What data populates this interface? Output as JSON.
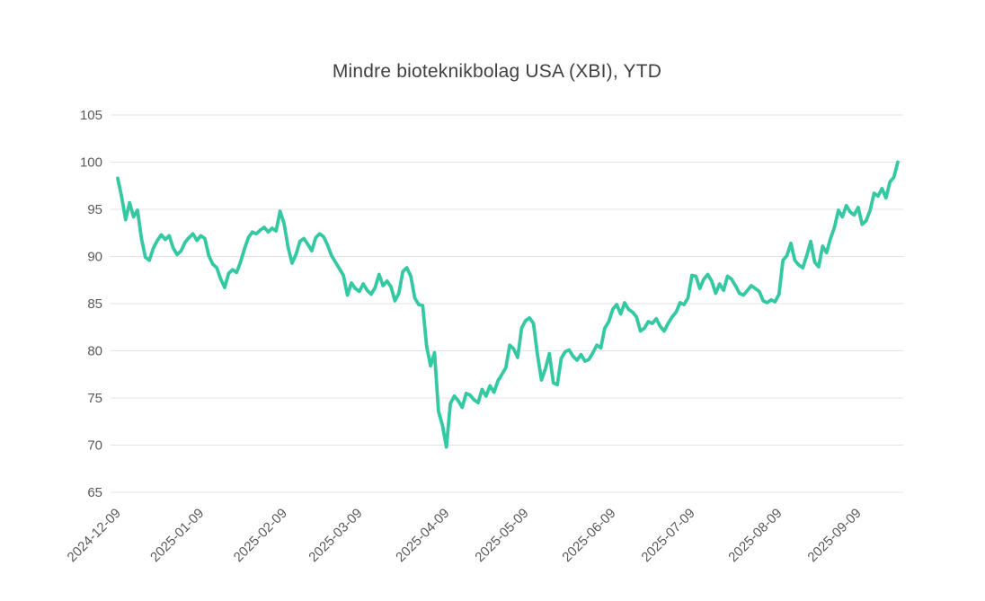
{
  "chart_data": {
    "type": "line",
    "title": "Mindre bioteknikbolag USA (XBI), YTD",
    "legend": "none",
    "grid": "horizontal",
    "ylim": [
      65,
      105
    ],
    "y_ticks": [
      65,
      70,
      75,
      80,
      85,
      90,
      95,
      100,
      105
    ],
    "x_tick_labels": [
      "2024-12-09",
      "2025-01-09",
      "2025-02-09",
      "2025-03-09",
      "2025-04-09",
      "2025-05-09",
      "2025-06-09",
      "2025-07-09",
      "2025-08-09",
      "2025-09-09"
    ],
    "x_tick_indices": [
      0,
      21,
      42,
      61,
      83,
      103,
      125,
      145,
      167,
      187
    ],
    "series": [
      {
        "name": "XBI YTD",
        "color": "#35C9A3",
        "values": [
          98.3,
          96.3,
          93.9,
          95.7,
          94.2,
          94.9,
          91.9,
          89.9,
          89.6,
          90.9,
          91.7,
          92.3,
          91.8,
          92.2,
          90.9,
          90.2,
          90.6,
          91.5,
          92.0,
          92.4,
          91.7,
          92.2,
          91.9,
          90.1,
          89.2,
          88.8,
          87.6,
          86.7,
          88.2,
          88.6,
          88.3,
          89.4,
          90.8,
          92.0,
          92.6,
          92.4,
          92.8,
          93.1,
          92.6,
          93.0,
          92.7,
          94.8,
          93.5,
          91.0,
          89.3,
          90.2,
          91.6,
          91.9,
          91.3,
          90.6,
          92.0,
          92.4,
          92.1,
          91.2,
          90.1,
          89.4,
          88.7,
          88.0,
          85.9,
          87.2,
          86.6,
          86.3,
          87.1,
          86.4,
          86.0,
          86.7,
          88.1,
          86.9,
          87.4,
          86.8,
          85.3,
          86.1,
          88.4,
          88.8,
          87.9,
          85.6,
          84.9,
          84.8,
          80.5,
          78.4,
          79.8,
          73.6,
          72.1,
          69.8,
          74.4,
          75.2,
          74.7,
          74.0,
          75.5,
          75.3,
          74.8,
          74.5,
          75.9,
          75.2,
          76.3,
          75.6,
          76.8,
          77.5,
          78.2,
          80.6,
          80.2,
          79.3,
          82.4,
          83.2,
          83.5,
          82.9,
          79.6,
          76.9,
          78.1,
          79.7,
          76.6,
          76.4,
          79.2,
          79.9,
          80.1,
          79.4,
          79.0,
          79.6,
          78.9,
          79.1,
          79.8,
          80.6,
          80.3,
          82.4,
          83.1,
          84.4,
          84.9,
          83.9,
          85.1,
          84.4,
          84.1,
          83.6,
          82.1,
          82.4,
          83.1,
          82.9,
          83.4,
          82.6,
          82.1,
          82.9,
          83.6,
          84.1,
          85.1,
          84.9,
          85.6,
          88.0,
          87.9,
          86.6,
          87.6,
          88.1,
          87.4,
          86.1,
          87.1,
          86.4,
          87.9,
          87.6,
          86.9,
          86.1,
          85.9,
          86.4,
          86.9,
          86.6,
          86.3,
          85.3,
          85.1,
          85.4,
          85.2,
          86.0,
          89.6,
          90.1,
          91.4,
          89.6,
          89.1,
          88.8,
          90.1,
          91.6,
          89.4,
          88.9,
          91.1,
          90.4,
          91.9,
          93.1,
          94.9,
          94.2,
          95.4,
          94.7,
          94.4,
          95.2,
          93.4,
          93.8,
          94.9,
          96.7,
          96.4,
          97.2,
          96.2,
          97.9,
          98.4,
          100.0
        ]
      }
    ],
    "colors": {
      "line": "#35C9A3",
      "grid": "#e3e3e3",
      "axis_labels": "#595959",
      "title": "#404040",
      "background": "#ffffff"
    }
  }
}
